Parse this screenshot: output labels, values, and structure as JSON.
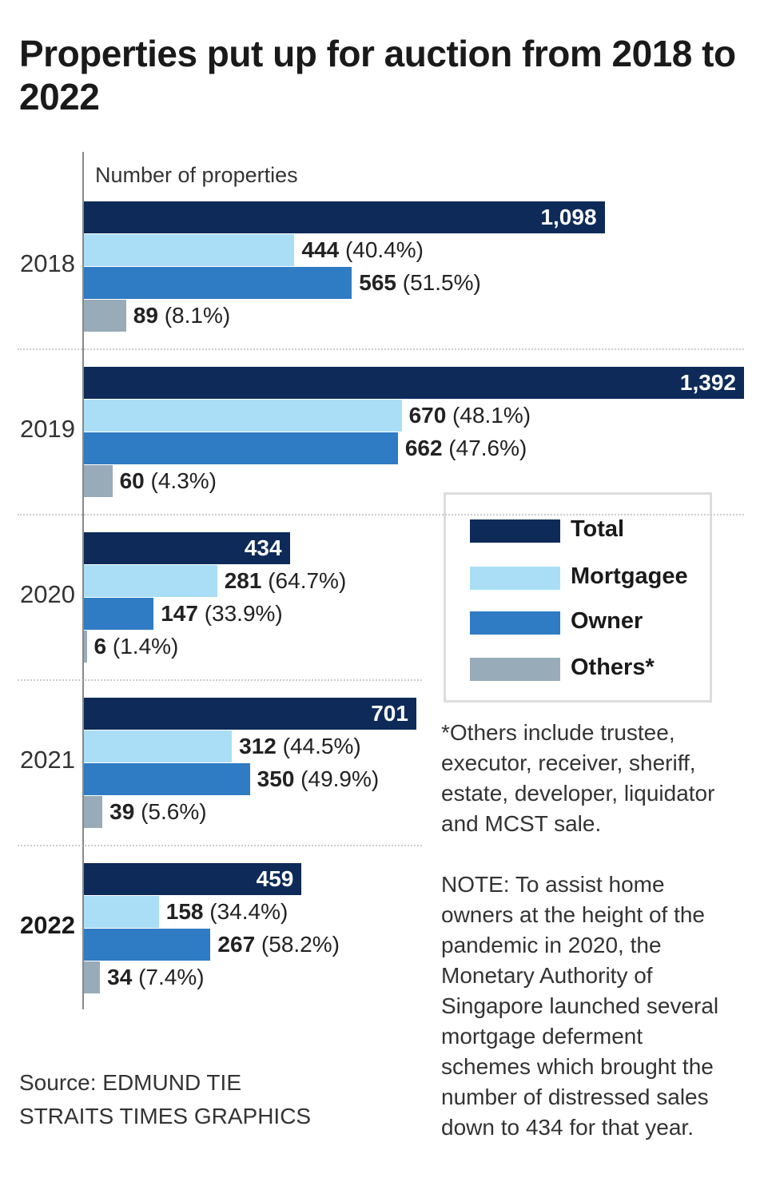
{
  "chart_data": {
    "type": "bar",
    "orientation": "horizontal",
    "title": "Properties put up for auction from 2018 to 2022",
    "ylabel": "Number of properties",
    "categories": [
      "2018",
      "2019",
      "2020",
      "2021",
      "2022"
    ],
    "highlight_category": "2022",
    "series": [
      {
        "name": "Total",
        "color": "#0d2a58",
        "values": [
          1098,
          1392,
          434,
          701,
          459
        ],
        "labels": [
          "1,098",
          "1,392",
          "434",
          "701",
          "459"
        ]
      },
      {
        "name": "Mortgagee",
        "color": "#a9def6",
        "values": [
          444,
          670,
          281,
          312,
          158
        ],
        "percents": [
          "(40.4%)",
          "(48.1%)",
          "(64.7%)",
          "(44.5%)",
          "(34.4%)"
        ]
      },
      {
        "name": "Owner",
        "color": "#2f7bc4",
        "values": [
          565,
          662,
          147,
          350,
          267
        ],
        "percents": [
          "(51.5%)",
          "(47.6%)",
          "(33.9%)",
          "(49.9%)",
          "(58.2%)"
        ]
      },
      {
        "name": "Others*",
        "color": "#98abb8",
        "values": [
          89,
          60,
          6,
          39,
          34
        ],
        "percents": [
          "(8.1%)",
          "(4.3%)",
          "(1.4%)",
          "(5.6%)",
          "(7.4%)"
        ]
      }
    ],
    "legend": {
      "placement": "right",
      "items": [
        "Total",
        "Mortgagee",
        "Owner",
        "Others*"
      ]
    },
    "grid": false
  },
  "footnote": [
    "*Others include trustee,",
    "executor, receiver, sheriff,",
    "estate, developer, liquidator",
    "and MCST sale."
  ],
  "note": [
    "NOTE: To assist home",
    "owners at the height of the",
    "pandemic in 2020, the",
    "Monetary Authority of",
    "Singapore launched several",
    "mortgage deferment",
    "schemes which brought the",
    "number of distressed sales",
    "down to 434 for that year."
  ],
  "source": [
    "Source: EDMUND TIE",
    "STRAITS TIMES GRAPHICS"
  ]
}
